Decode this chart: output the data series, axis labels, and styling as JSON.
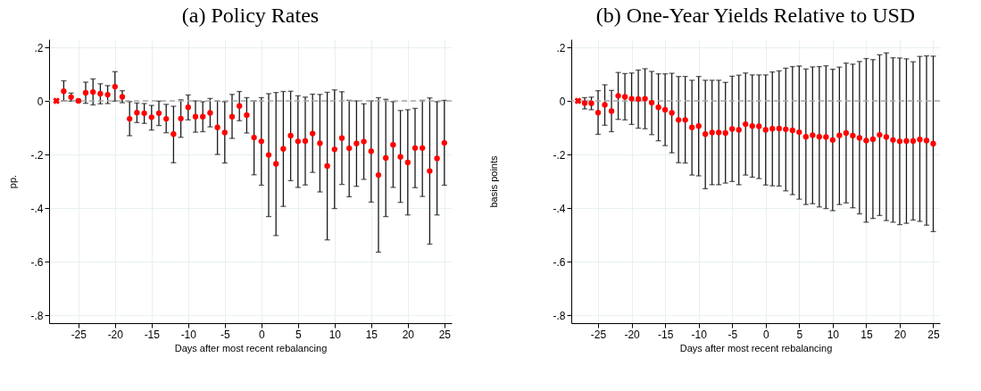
{
  "chart_data": [
    {
      "type": "scatter",
      "title": "(a) Policy Rates",
      "xlabel": "Days after most recent rebalancing",
      "ylabel": "pp.",
      "xlim": [
        -29,
        26
      ],
      "ylim": [
        -0.83,
        0.23
      ],
      "xticks": [
        -25,
        -20,
        -15,
        -10,
        -5,
        0,
        5,
        10,
        15,
        20,
        25
      ],
      "yticks": [
        {
          "value": 0.2,
          "label": ".2"
        },
        0,
        {
          "value": -0.2,
          "label": "-.2"
        },
        {
          "value": -0.4,
          "label": "-.4"
        },
        {
          "value": -0.6,
          "label": "-.6"
        },
        {
          "value": -0.8,
          "label": "-.8"
        }
      ],
      "grid": true,
      "ref_lines": [
        {
          "axis": "y",
          "value": 0,
          "line_style": "dashed",
          "color": "#a8a8a8"
        }
      ],
      "series": [
        {
          "color": "#ff0000",
          "marker": "circle",
          "x": [
            -27,
            -26,
            -25,
            -24,
            -23,
            -22,
            -21,
            -20,
            -19,
            -18,
            -17,
            -16,
            -15,
            -14,
            -13,
            -12,
            -11,
            -10,
            -9,
            -8,
            -7,
            -6,
            -5,
            -4,
            -3,
            -2,
            -1,
            0,
            1,
            2,
            3,
            4,
            5,
            6,
            7,
            8,
            9,
            10,
            11,
            12,
            13,
            14,
            15,
            16,
            17,
            18,
            19,
            20,
            21,
            22,
            23,
            24,
            25
          ],
          "values": [
            0.036,
            0.014,
            0,
            0.03,
            0.033,
            0.027,
            0.023,
            0.053,
            0.015,
            -0.067,
            -0.044,
            -0.046,
            -0.061,
            -0.046,
            -0.067,
            -0.124,
            -0.066,
            -0.024,
            -0.059,
            -0.059,
            -0.045,
            -0.099,
            -0.118,
            -0.059,
            -0.019,
            -0.053,
            -0.137,
            -0.151,
            -0.202,
            -0.235,
            -0.179,
            -0.13,
            -0.151,
            -0.15,
            -0.122,
            -0.158,
            -0.243,
            -0.181,
            -0.139,
            -0.177,
            -0.159,
            -0.152,
            -0.188,
            -0.277,
            -0.213,
            -0.164,
            -0.209,
            -0.23,
            -0.176,
            -0.176,
            -0.262,
            -0.215,
            -0.157
          ],
          "errors": [
            [
              0,
              0.075
            ],
            [
              -0.001,
              0.029
            ],
            [
              -0.005,
              0.005
            ],
            [
              -0.009,
              0.07
            ],
            [
              -0.015,
              0.082
            ],
            [
              -0.011,
              0.064
            ],
            [
              -0.01,
              0.057
            ],
            [
              -0.001,
              0.109
            ],
            [
              -0.007,
              0.038
            ],
            [
              -0.13,
              -0.003
            ],
            [
              -0.081,
              -0.008
            ],
            [
              -0.084,
              -0.01
            ],
            [
              -0.109,
              -0.017
            ],
            [
              -0.092,
              -0.001
            ],
            [
              -0.119,
              -0.013
            ],
            [
              -0.231,
              -0.02
            ],
            [
              -0.136,
              0.004
            ],
            [
              -0.071,
              0.022
            ],
            [
              -0.117,
              0
            ],
            [
              -0.115,
              -0.003
            ],
            [
              -0.097,
              0.009
            ],
            [
              -0.2,
              -0.001
            ],
            [
              -0.232,
              -0.003
            ],
            [
              -0.14,
              0.024
            ],
            [
              -0.074,
              0.035
            ],
            [
              -0.12,
              0.012
            ],
            [
              -0.276,
              0
            ],
            [
              -0.315,
              0.012
            ],
            [
              -0.432,
              0.027
            ],
            [
              -0.503,
              0.031
            ],
            [
              -0.394,
              0.035
            ],
            [
              -0.298,
              0.036
            ],
            [
              -0.323,
              0.019
            ],
            [
              -0.314,
              0.014
            ],
            [
              -0.267,
              0.025
            ],
            [
              -0.34,
              0.024
            ],
            [
              -0.519,
              0.032
            ],
            [
              -0.402,
              0.041
            ],
            [
              -0.312,
              0.034
            ],
            [
              -0.358,
              0.002
            ],
            [
              -0.319,
              0
            ],
            [
              -0.293,
              -0.011
            ],
            [
              -0.378,
              0
            ],
            [
              -0.565,
              0.012
            ],
            [
              -0.432,
              0.006
            ],
            [
              -0.323,
              -0.003
            ],
            [
              -0.379,
              -0.036
            ],
            [
              -0.426,
              -0.033
            ],
            [
              -0.324,
              -0.028
            ],
            [
              -0.357,
              0.002
            ],
            [
              -0.535,
              0.011
            ],
            [
              -0.426,
              -0.003
            ],
            [
              -0.315,
              0.002
            ]
          ]
        },
        {
          "color": "#ff0000",
          "marker": "cross",
          "x": [
            -28
          ],
          "values": [
            0
          ]
        }
      ]
    },
    {
      "type": "scatter",
      "title": "(b) One-Year Yields Relative to USD",
      "xlabel": "Days after most recent rebalancing",
      "ylabel": "basis points",
      "xlim": [
        -29,
        26
      ],
      "ylim": [
        -0.83,
        0.23
      ],
      "xticks": [
        -25,
        -20,
        -15,
        -10,
        -5,
        0,
        5,
        10,
        15,
        20,
        25
      ],
      "yticks": [
        {
          "value": 0.2,
          "label": ".2"
        },
        0,
        {
          "value": -0.2,
          "label": "-.2"
        },
        {
          "value": -0.4,
          "label": "-.4"
        },
        {
          "value": -0.6,
          "label": "-.6"
        },
        {
          "value": -0.8,
          "label": "-.8"
        }
      ],
      "grid": true,
      "ref_lines": [
        {
          "axis": "y",
          "value": 0,
          "line_style": "dashed",
          "color": "#a8a8a8"
        }
      ],
      "series": [
        {
          "color": "#ff0000",
          "marker": "circle",
          "x": [
            -27,
            -26,
            -25,
            -24,
            -23,
            -22,
            -21,
            -20,
            -19,
            -18,
            -17,
            -16,
            -15,
            -14,
            -13,
            -12,
            -11,
            -10,
            -9,
            -8,
            -7,
            -6,
            -5,
            -4,
            -3,
            -2,
            -1,
            0,
            1,
            2,
            3,
            4,
            5,
            6,
            7,
            8,
            9,
            10,
            11,
            12,
            13,
            14,
            15,
            16,
            17,
            18,
            19,
            20,
            21,
            22,
            23,
            24,
            25
          ],
          "values": [
            -0.008,
            -0.009,
            -0.044,
            -0.015,
            -0.038,
            0.019,
            0.015,
            0.008,
            0.007,
            0.008,
            -0.007,
            -0.024,
            -0.033,
            -0.045,
            -0.071,
            -0.071,
            -0.099,
            -0.094,
            -0.124,
            -0.118,
            -0.118,
            -0.12,
            -0.105,
            -0.108,
            -0.087,
            -0.094,
            -0.095,
            -0.108,
            -0.104,
            -0.103,
            -0.106,
            -0.11,
            -0.117,
            -0.134,
            -0.128,
            -0.134,
            -0.135,
            -0.146,
            -0.129,
            -0.12,
            -0.13,
            -0.138,
            -0.148,
            -0.143,
            -0.127,
            -0.135,
            -0.146,
            -0.151,
            -0.15,
            -0.15,
            -0.144,
            -0.148,
            -0.16
          ],
          "errors": [
            [
              -0.03,
              0.012
            ],
            [
              -0.033,
              0.014
            ],
            [
              -0.125,
              0.038
            ],
            [
              -0.091,
              0.06
            ],
            [
              -0.115,
              0.039
            ],
            [
              -0.069,
              0.106
            ],
            [
              -0.071,
              0.102
            ],
            [
              -0.088,
              0.104
            ],
            [
              -0.102,
              0.115
            ],
            [
              -0.104,
              0.12
            ],
            [
              -0.126,
              0.11
            ],
            [
              -0.149,
              0.101
            ],
            [
              -0.167,
              0.101
            ],
            [
              -0.194,
              0.103
            ],
            [
              -0.231,
              0.091
            ],
            [
              -0.232,
              0.091
            ],
            [
              -0.277,
              0.077
            ],
            [
              -0.28,
              0.091
            ],
            [
              -0.328,
              0.077
            ],
            [
              -0.313,
              0.077
            ],
            [
              -0.313,
              0.077
            ],
            [
              -0.307,
              0.069
            ],
            [
              -0.301,
              0.092
            ],
            [
              -0.313,
              0.096
            ],
            [
              -0.277,
              0.104
            ],
            [
              -0.285,
              0.097
            ],
            [
              -0.29,
              0.097
            ],
            [
              -0.314,
              0.097
            ],
            [
              -0.317,
              0.108
            ],
            [
              -0.318,
              0.112
            ],
            [
              -0.336,
              0.122
            ],
            [
              -0.35,
              0.128
            ],
            [
              -0.367,
              0.13
            ],
            [
              -0.387,
              0.119
            ],
            [
              -0.384,
              0.127
            ],
            [
              -0.396,
              0.128
            ],
            [
              -0.402,
              0.131
            ],
            [
              -0.41,
              0.118
            ],
            [
              -0.387,
              0.126
            ],
            [
              -0.381,
              0.141
            ],
            [
              -0.399,
              0.137
            ],
            [
              -0.422,
              0.147
            ],
            [
              -0.453,
              0.158
            ],
            [
              -0.439,
              0.154
            ],
            [
              -0.428,
              0.172
            ],
            [
              -0.447,
              0.179
            ],
            [
              -0.453,
              0.161
            ],
            [
              -0.462,
              0.16
            ],
            [
              -0.457,
              0.157
            ],
            [
              -0.445,
              0.146
            ],
            [
              -0.45,
              0.166
            ],
            [
              -0.464,
              0.168
            ],
            [
              -0.488,
              0.167
            ]
          ]
        },
        {
          "color": "#ff0000",
          "marker": "cross",
          "x": [
            -28
          ],
          "values": [
            0
          ]
        }
      ]
    }
  ]
}
